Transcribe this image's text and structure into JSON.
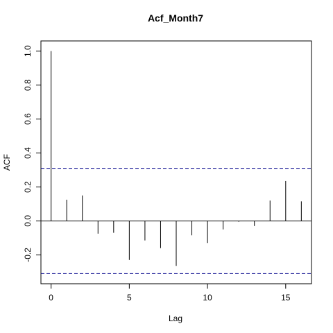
{
  "chart_data": {
    "type": "bar",
    "title": "Acf_Month7",
    "xlabel": "Lag",
    "ylabel": "ACF",
    "xlim": [
      -0.65,
      16.65
    ],
    "ylim": [
      -0.37,
      1.06
    ],
    "x_ticks": [
      0,
      5,
      10,
      15
    ],
    "y_ticks": [
      -0.2,
      0.0,
      0.2,
      0.4,
      0.6,
      0.8,
      1.0
    ],
    "y_tick_labels": [
      "-0.2",
      "0.0",
      "0.2",
      "0.4",
      "0.6",
      "0.8",
      "1.0"
    ],
    "x_tick_labels": [
      "0",
      "5",
      "10",
      "15"
    ],
    "grid": false,
    "lags": [
      0,
      1,
      2,
      3,
      4,
      5,
      6,
      7,
      8,
      9,
      10,
      11,
      12,
      13,
      14,
      15,
      16
    ],
    "values": [
      1.0,
      0.125,
      0.15,
      -0.075,
      -0.07,
      -0.23,
      -0.115,
      -0.16,
      -0.265,
      -0.085,
      -0.13,
      -0.05,
      -0.005,
      -0.03,
      0.12,
      0.235,
      0.115
    ],
    "confidence_band": [
      -0.31,
      0.31
    ],
    "colors": {
      "bars": "#000000",
      "band": "#00008B",
      "axes": "#000000"
    }
  }
}
